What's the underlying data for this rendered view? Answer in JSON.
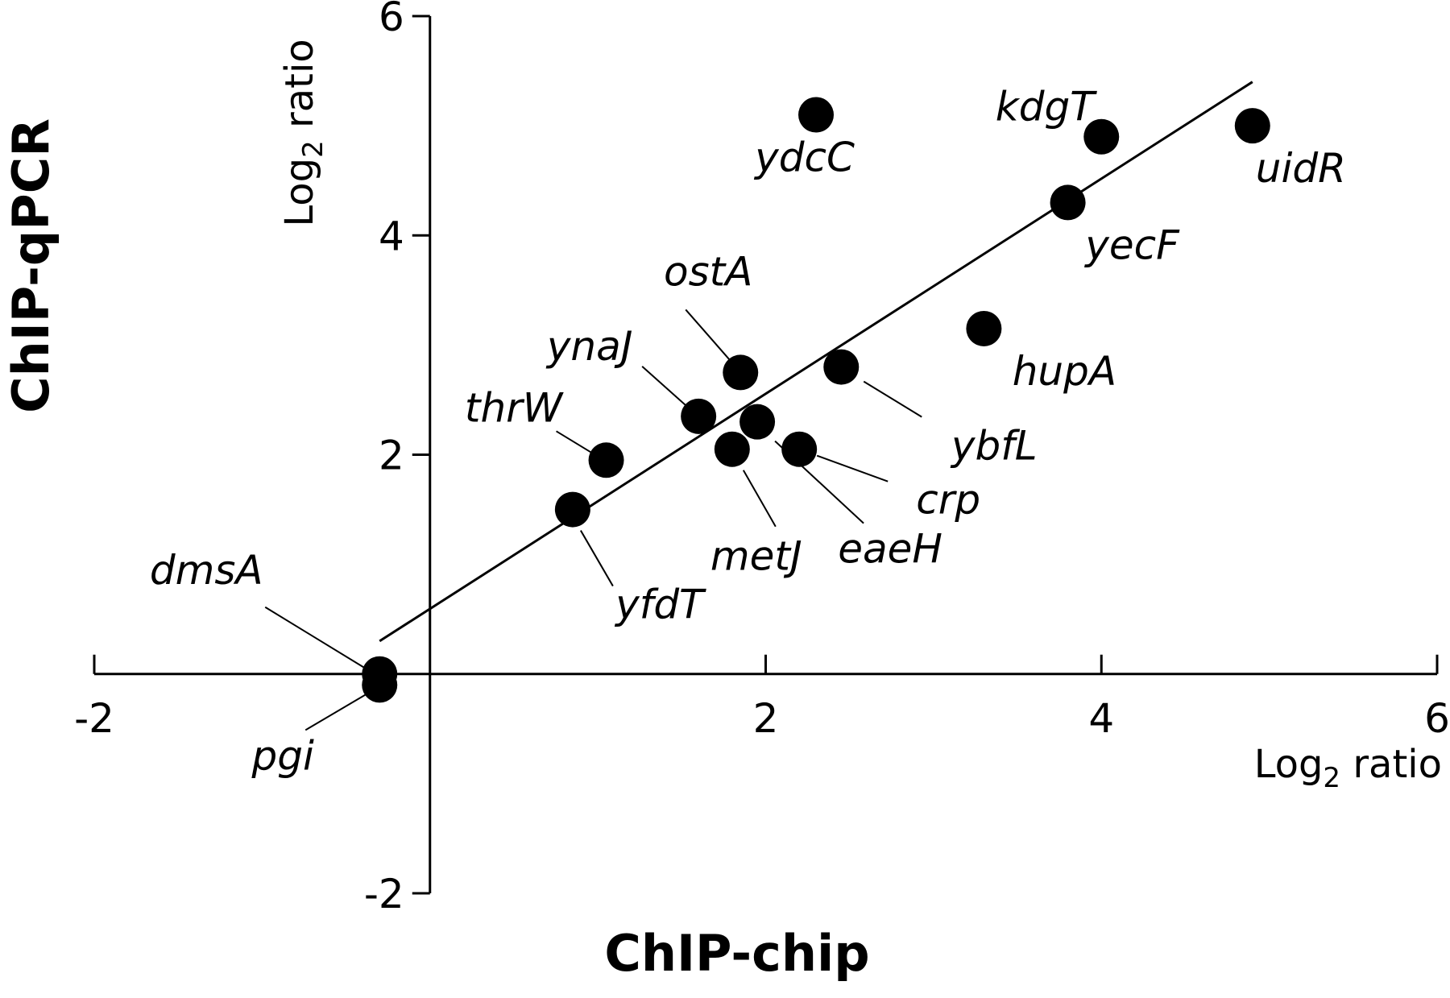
{
  "chart_data": {
    "type": "scatter",
    "title": "",
    "xlabel": "ChIP-chip",
    "ylabel": "ChIP-qPCR",
    "x_unit": {
      "base": "Log",
      "sub": "2",
      "rest": " ratio"
    },
    "y_unit": {
      "base": "Log",
      "sub": "2",
      "rest": " ratio"
    },
    "xlim": [
      -2,
      6
    ],
    "ylim": [
      -2,
      6
    ],
    "xticks": [
      -2,
      2,
      4,
      6
    ],
    "yticks": [
      -2,
      2,
      4,
      6
    ],
    "grid": false,
    "legend": "none",
    "points": [
      {
        "label": "ydcC",
        "x": 2.3,
        "y": 5.1
      },
      {
        "label": "kdgT",
        "x": 4.0,
        "y": 4.9
      },
      {
        "label": "uidR",
        "x": 4.9,
        "y": 5.0
      },
      {
        "label": "yecF",
        "x": 3.8,
        "y": 4.3
      },
      {
        "label": "ostA",
        "x": 1.85,
        "y": 2.75
      },
      {
        "label": "hupA",
        "x": 3.3,
        "y": 3.15
      },
      {
        "label": "ybfL",
        "x": 2.45,
        "y": 2.8
      },
      {
        "label": "ynaJ",
        "x": 1.6,
        "y": 2.35
      },
      {
        "label": "thrW",
        "x": 1.05,
        "y": 1.95
      },
      {
        "label": "crp",
        "x": 2.2,
        "y": 2.05
      },
      {
        "label": "metJ",
        "x": 1.8,
        "y": 2.05
      },
      {
        "label": "eaeH",
        "x": 1.95,
        "y": 2.3
      },
      {
        "label": "yfdT",
        "x": 0.85,
        "y": 1.5
      },
      {
        "label": "dmsA",
        "x": -0.3,
        "y": 0.0
      },
      {
        "label": "pgi",
        "x": -0.3,
        "y": -0.1
      }
    ],
    "fit_line": {
      "x": [
        -0.3,
        4.9
      ],
      "y": [
        0.3,
        5.4
      ]
    }
  }
}
